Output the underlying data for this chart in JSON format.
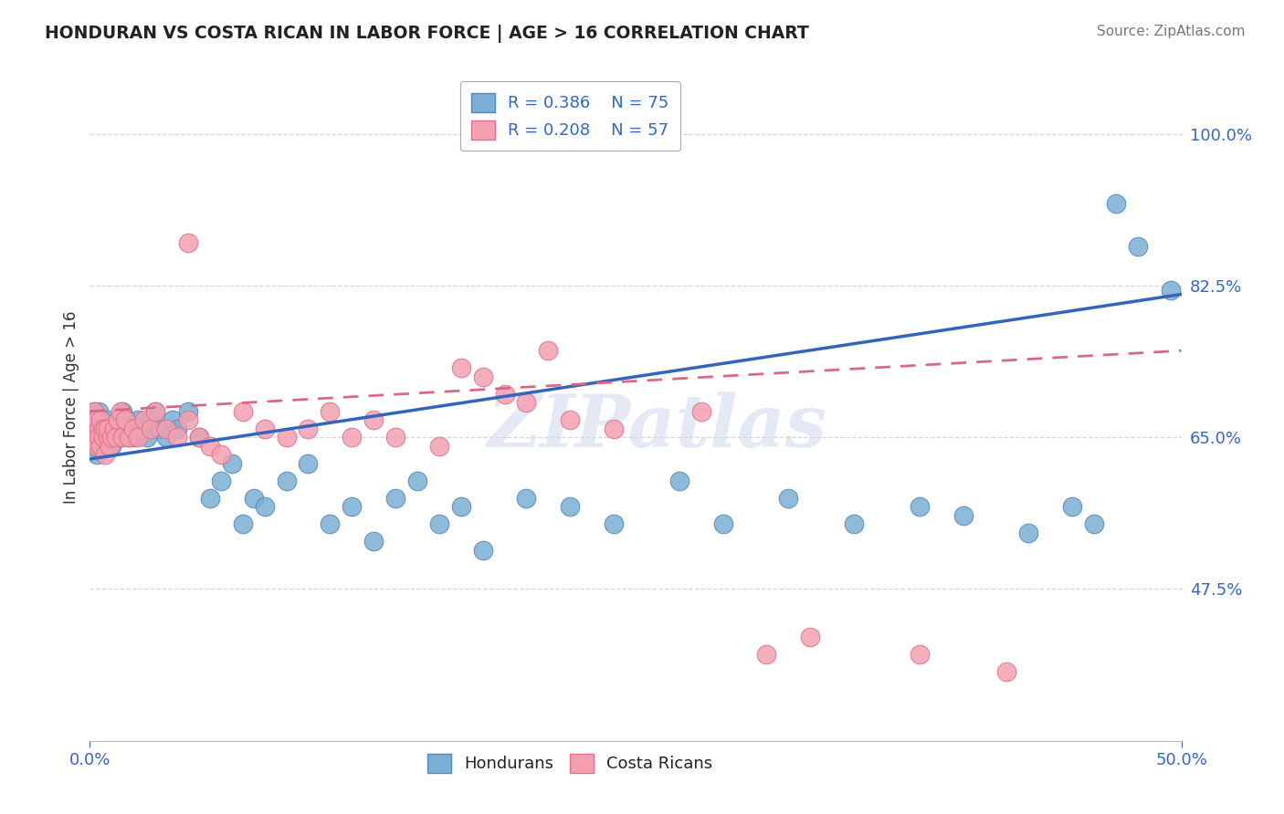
{
  "title": "HONDURAN VS COSTA RICAN IN LABOR FORCE | AGE > 16 CORRELATION CHART",
  "source_text": "Source: ZipAtlas.com",
  "ylabel": "In Labor Force | Age > 16",
  "xlim": [
    0.0,
    0.5
  ],
  "ylim": [
    0.3,
    1.07
  ],
  "xtick_vals": [
    0.0,
    0.5
  ],
  "xticklabels": [
    "0.0%",
    "50.0%"
  ],
  "ytick_values": [
    0.475,
    0.65,
    0.825,
    1.0
  ],
  "yticklabels": [
    "47.5%",
    "65.0%",
    "82.5%",
    "100.0%"
  ],
  "blue_R": 0.386,
  "blue_N": 75,
  "pink_R": 0.208,
  "pink_N": 57,
  "blue_color": "#7BAFD4",
  "pink_color": "#F4A0B0",
  "blue_edge_color": "#5588BB",
  "pink_edge_color": "#E07090",
  "blue_line_color": "#3366BB",
  "pink_line_color": "#DD6688",
  "watermark": "ZIPatlas",
  "blue_trend_x0": 0.0,
  "blue_trend_y0": 0.625,
  "blue_trend_x1": 0.5,
  "blue_trend_y1": 0.815,
  "pink_trend_x0": 0.0,
  "pink_trend_y0": 0.68,
  "pink_trend_x1": 0.5,
  "pink_trend_y1": 0.75,
  "blue_x": [
    0.001,
    0.002,
    0.002,
    0.003,
    0.003,
    0.003,
    0.004,
    0.004,
    0.005,
    0.005,
    0.005,
    0.006,
    0.006,
    0.007,
    0.007,
    0.008,
    0.008,
    0.009,
    0.009,
    0.01,
    0.01,
    0.011,
    0.011,
    0.012,
    0.012,
    0.013,
    0.014,
    0.015,
    0.016,
    0.017,
    0.018,
    0.019,
    0.02,
    0.022,
    0.024,
    0.026,
    0.028,
    0.03,
    0.032,
    0.035,
    0.038,
    0.04,
    0.045,
    0.05,
    0.055,
    0.06,
    0.065,
    0.07,
    0.075,
    0.08,
    0.09,
    0.1,
    0.11,
    0.12,
    0.13,
    0.14,
    0.15,
    0.16,
    0.17,
    0.18,
    0.2,
    0.22,
    0.24,
    0.27,
    0.29,
    0.32,
    0.35,
    0.38,
    0.4,
    0.43,
    0.45,
    0.46,
    0.47,
    0.48,
    0.495
  ],
  "blue_y": [
    0.64,
    0.66,
    0.68,
    0.65,
    0.67,
    0.63,
    0.66,
    0.68,
    0.65,
    0.67,
    0.64,
    0.65,
    0.66,
    0.64,
    0.66,
    0.65,
    0.67,
    0.65,
    0.66,
    0.65,
    0.64,
    0.65,
    0.66,
    0.65,
    0.66,
    0.67,
    0.65,
    0.68,
    0.66,
    0.67,
    0.65,
    0.66,
    0.65,
    0.67,
    0.66,
    0.65,
    0.67,
    0.68,
    0.66,
    0.65,
    0.67,
    0.66,
    0.68,
    0.65,
    0.58,
    0.6,
    0.62,
    0.55,
    0.58,
    0.57,
    0.6,
    0.62,
    0.55,
    0.57,
    0.53,
    0.58,
    0.6,
    0.55,
    0.57,
    0.52,
    0.58,
    0.57,
    0.55,
    0.6,
    0.55,
    0.58,
    0.55,
    0.57,
    0.56,
    0.54,
    0.57,
    0.55,
    0.92,
    0.87,
    0.82
  ],
  "pink_x": [
    0.001,
    0.002,
    0.002,
    0.003,
    0.003,
    0.004,
    0.004,
    0.005,
    0.005,
    0.006,
    0.006,
    0.007,
    0.007,
    0.008,
    0.008,
    0.009,
    0.01,
    0.011,
    0.012,
    0.013,
    0.014,
    0.015,
    0.016,
    0.018,
    0.02,
    0.022,
    0.025,
    0.028,
    0.03,
    0.035,
    0.04,
    0.045,
    0.05,
    0.055,
    0.06,
    0.07,
    0.08,
    0.09,
    0.1,
    0.11,
    0.12,
    0.13,
    0.14,
    0.045,
    0.16,
    0.17,
    0.18,
    0.19,
    0.2,
    0.21,
    0.22,
    0.24,
    0.28,
    0.31,
    0.33,
    0.38,
    0.42
  ],
  "pink_y": [
    0.66,
    0.68,
    0.65,
    0.67,
    0.64,
    0.66,
    0.65,
    0.67,
    0.64,
    0.66,
    0.65,
    0.66,
    0.63,
    0.65,
    0.66,
    0.64,
    0.65,
    0.66,
    0.65,
    0.67,
    0.68,
    0.65,
    0.67,
    0.65,
    0.66,
    0.65,
    0.67,
    0.66,
    0.68,
    0.66,
    0.65,
    0.67,
    0.65,
    0.64,
    0.63,
    0.68,
    0.66,
    0.65,
    0.66,
    0.68,
    0.65,
    0.67,
    0.65,
    0.875,
    0.64,
    0.73,
    0.72,
    0.7,
    0.69,
    0.75,
    0.67,
    0.66,
    0.68,
    0.4,
    0.42,
    0.4,
    0.38
  ]
}
